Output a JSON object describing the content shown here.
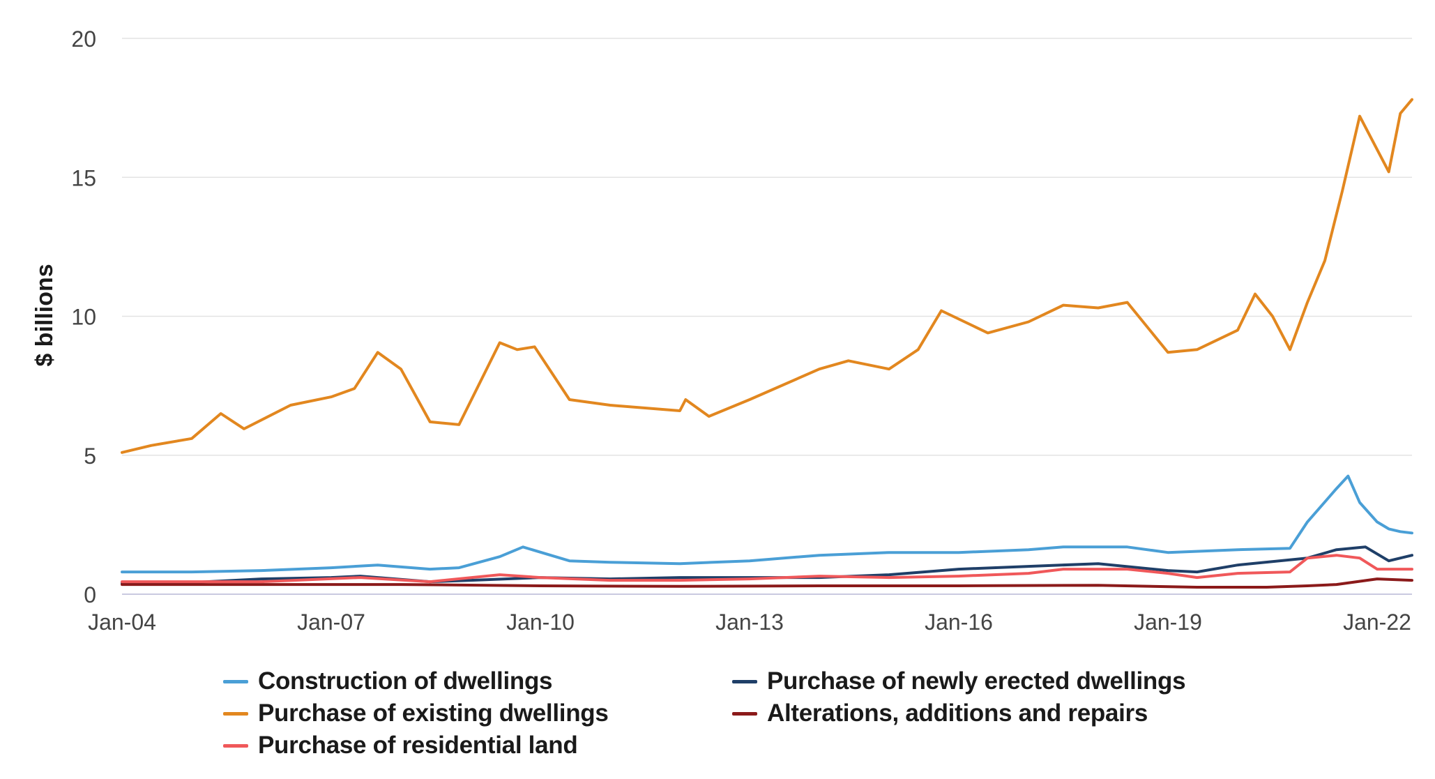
{
  "chart_data": {
    "type": "line",
    "ylabel": "$ billions",
    "xlabel": "",
    "ylim": [
      0,
      20
    ],
    "xlim": [
      "Jan-04",
      "Jul-22"
    ],
    "yticks": [
      "0",
      "5",
      "10",
      "15",
      "20"
    ],
    "xticks": [
      "Jan-04",
      "Jan-07",
      "Jan-10",
      "Jan-13",
      "Jan-16",
      "Jan-19",
      "Jan-22"
    ],
    "grid": "horizontal",
    "legend_placement": "bottom",
    "series": [
      {
        "name": "Construction of dwellings",
        "color": "#4a9fd6",
        "points": [
          [
            "2004-01",
            0.8
          ],
          [
            "2005-01",
            0.8
          ],
          [
            "2006-01",
            0.85
          ],
          [
            "2007-01",
            0.95
          ],
          [
            "2007-09",
            1.05
          ],
          [
            "2008-06",
            0.9
          ],
          [
            "2008-11",
            0.95
          ],
          [
            "2009-06",
            1.35
          ],
          [
            "2009-10",
            1.7
          ],
          [
            "2010-06",
            1.2
          ],
          [
            "2011-01",
            1.15
          ],
          [
            "2012-01",
            1.1
          ],
          [
            "2013-01",
            1.2
          ],
          [
            "2014-01",
            1.4
          ],
          [
            "2015-01",
            1.5
          ],
          [
            "2016-01",
            1.5
          ],
          [
            "2017-01",
            1.6
          ],
          [
            "2017-07",
            1.7
          ],
          [
            "2018-06",
            1.7
          ],
          [
            "2019-01",
            1.5
          ],
          [
            "2020-01",
            1.6
          ],
          [
            "2020-10",
            1.65
          ],
          [
            "2021-01",
            2.6
          ],
          [
            "2021-06",
            3.8
          ],
          [
            "2021-08",
            4.25
          ],
          [
            "2021-10",
            3.3
          ],
          [
            "2022-01",
            2.6
          ],
          [
            "2022-03",
            2.35
          ],
          [
            "2022-05",
            2.25
          ],
          [
            "2022-07",
            2.2
          ]
        ]
      },
      {
        "name": "Purchase of newly erected dwellings",
        "color": "#1f3f68",
        "points": [
          [
            "2004-01",
            0.4
          ],
          [
            "2005-01",
            0.42
          ],
          [
            "2006-01",
            0.55
          ],
          [
            "2007-01",
            0.6
          ],
          [
            "2007-06",
            0.65
          ],
          [
            "2008-06",
            0.45
          ],
          [
            "2009-01",
            0.5
          ],
          [
            "2010-01",
            0.6
          ],
          [
            "2011-01",
            0.55
          ],
          [
            "2012-01",
            0.6
          ],
          [
            "2013-01",
            0.6
          ],
          [
            "2014-01",
            0.6
          ],
          [
            "2015-01",
            0.7
          ],
          [
            "2016-01",
            0.9
          ],
          [
            "2017-01",
            1.0
          ],
          [
            "2018-01",
            1.1
          ],
          [
            "2019-01",
            0.85
          ],
          [
            "2019-06",
            0.8
          ],
          [
            "2020-01",
            1.05
          ],
          [
            "2021-01",
            1.3
          ],
          [
            "2021-06",
            1.6
          ],
          [
            "2021-11",
            1.7
          ],
          [
            "2022-03",
            1.2
          ],
          [
            "2022-07",
            1.4
          ]
        ]
      },
      {
        "name": "Purchase of existing dwellings",
        "color": "#e2871f",
        "points": [
          [
            "2004-01",
            5.1
          ],
          [
            "2004-06",
            5.35
          ],
          [
            "2005-01",
            5.6
          ],
          [
            "2005-06",
            6.5
          ],
          [
            "2005-10",
            5.95
          ],
          [
            "2006-06",
            6.8
          ],
          [
            "2007-01",
            7.1
          ],
          [
            "2007-05",
            7.4
          ],
          [
            "2007-09",
            8.7
          ],
          [
            "2008-01",
            8.1
          ],
          [
            "2008-06",
            6.2
          ],
          [
            "2008-11",
            6.1
          ],
          [
            "2009-06",
            9.05
          ],
          [
            "2009-09",
            8.8
          ],
          [
            "2009-12",
            8.9
          ],
          [
            "2010-06",
            7.0
          ],
          [
            "2011-01",
            6.8
          ],
          [
            "2012-01",
            6.6
          ],
          [
            "2012-02",
            7.0
          ],
          [
            "2012-06",
            6.4
          ],
          [
            "2013-01",
            7.0
          ],
          [
            "2014-01",
            8.1
          ],
          [
            "2014-06",
            8.4
          ],
          [
            "2015-01",
            8.1
          ],
          [
            "2015-06",
            8.8
          ],
          [
            "2015-10",
            10.2
          ],
          [
            "2016-06",
            9.4
          ],
          [
            "2017-01",
            9.8
          ],
          [
            "2017-07",
            10.4
          ],
          [
            "2018-01",
            10.3
          ],
          [
            "2018-06",
            10.5
          ],
          [
            "2019-01",
            8.7
          ],
          [
            "2019-06",
            8.8
          ],
          [
            "2020-01",
            9.5
          ],
          [
            "2020-04",
            10.8
          ],
          [
            "2020-07",
            10.0
          ],
          [
            "2020-10",
            8.8
          ],
          [
            "2021-01",
            10.5
          ],
          [
            "2021-04",
            12.0
          ],
          [
            "2021-07",
            14.5
          ],
          [
            "2021-10",
            17.2
          ],
          [
            "2022-01",
            16.0
          ],
          [
            "2022-03",
            15.2
          ],
          [
            "2022-05",
            17.3
          ],
          [
            "2022-07",
            17.8
          ]
        ]
      },
      {
        "name": "Alterations, additions and repairs",
        "color": "#8b1a1a",
        "points": [
          [
            "2004-01",
            0.35
          ],
          [
            "2006-01",
            0.35
          ],
          [
            "2008-01",
            0.35
          ],
          [
            "2010-01",
            0.3
          ],
          [
            "2012-01",
            0.28
          ],
          [
            "2014-01",
            0.3
          ],
          [
            "2016-01",
            0.3
          ],
          [
            "2018-01",
            0.32
          ],
          [
            "2019-06",
            0.25
          ],
          [
            "2020-06",
            0.25
          ],
          [
            "2021-01",
            0.3
          ],
          [
            "2021-06",
            0.35
          ],
          [
            "2022-01",
            0.55
          ],
          [
            "2022-07",
            0.5
          ]
        ]
      },
      {
        "name": "Purchase of residential land",
        "color": "#f0585a",
        "points": [
          [
            "2004-01",
            0.45
          ],
          [
            "2006-01",
            0.45
          ],
          [
            "2007-06",
            0.6
          ],
          [
            "2008-06",
            0.45
          ],
          [
            "2009-06",
            0.7
          ],
          [
            "2010-01",
            0.6
          ],
          [
            "2011-01",
            0.5
          ],
          [
            "2012-01",
            0.5
          ],
          [
            "2013-01",
            0.55
          ],
          [
            "2014-01",
            0.65
          ],
          [
            "2015-01",
            0.6
          ],
          [
            "2016-01",
            0.65
          ],
          [
            "2017-01",
            0.75
          ],
          [
            "2017-07",
            0.9
          ],
          [
            "2018-06",
            0.9
          ],
          [
            "2019-01",
            0.75
          ],
          [
            "2019-06",
            0.6
          ],
          [
            "2020-01",
            0.75
          ],
          [
            "2020-10",
            0.8
          ],
          [
            "2021-01",
            1.3
          ],
          [
            "2021-06",
            1.4
          ],
          [
            "2021-10",
            1.3
          ],
          [
            "2022-01",
            0.9
          ],
          [
            "2022-07",
            0.9
          ]
        ]
      }
    ]
  },
  "legend": {
    "items": [
      {
        "label": "Construction of dwellings",
        "color": "#4a9fd6"
      },
      {
        "label": "Purchase of existing dwellings",
        "color": "#e2871f"
      },
      {
        "label": "Purchase of residential land",
        "color": "#f0585a"
      },
      {
        "label": "Purchase of newly erected dwellings",
        "color": "#1f3f68"
      },
      {
        "label": "Alterations, additions and repairs",
        "color": "#8b1a1a"
      }
    ]
  }
}
